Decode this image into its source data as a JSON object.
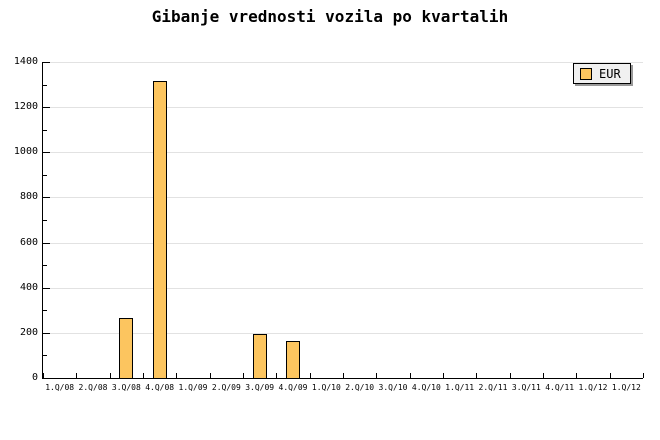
{
  "chart_data": {
    "type": "bar",
    "title": "Gibanje vrednosti vozila po kvartalih",
    "categories": [
      "1.Q/08",
      "2.Q/08",
      "3.Q/08",
      "4.Q/08",
      "1.Q/09",
      "2.Q/09",
      "3.Q/09",
      "4.Q/09",
      "1.Q/10",
      "2.Q/10",
      "3.Q/10",
      "4.Q/10",
      "1.Q/11",
      "2.Q/11",
      "3.Q/11",
      "4.Q/11",
      "1.Q/12",
      "1.Q/12"
    ],
    "series": [
      {
        "name": "EUR",
        "values": [
          0,
          0,
          265,
          1315,
          0,
          0,
          195,
          165,
          0,
          0,
          0,
          0,
          0,
          0,
          0,
          0,
          0,
          0
        ]
      }
    ],
    "xlabel": "",
    "ylabel": "",
    "ylim": [
      0,
      1400
    ],
    "y_major_step": 200,
    "y_minor_step": 100,
    "y_tick_labels": [
      "0",
      "200",
      "400",
      "600",
      "800",
      "1000",
      "1200",
      "1400"
    ],
    "grid": "horizontal-major",
    "legend_position": "top-right"
  },
  "colors": {
    "bar_fill": "#FCC55F",
    "bar_border": "#000000",
    "gridline": "#E2E2E2",
    "axis": "#000000",
    "legend_bg": "#F0F0F0",
    "legend_shadow": "#999999",
    "text": "#000000"
  }
}
